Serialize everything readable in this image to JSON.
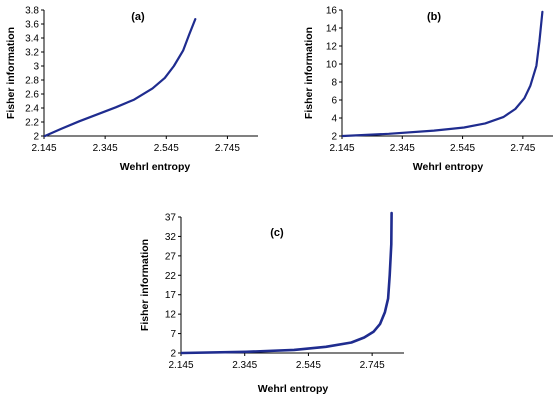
{
  "chart_data": [
    {
      "type": "line",
      "title": "(a)",
      "xlabel": "Wehrl entropy",
      "ylabel": "Fisher information",
      "xlim": [
        2.145,
        2.845
      ],
      "ylim": [
        2,
        3.8
      ],
      "xticks": [
        "2.145",
        "2.345",
        "2.545",
        "2.745"
      ],
      "yticks": [
        "2",
        "2.2",
        "2.4",
        "2.6",
        "2.8",
        "3",
        "3.2",
        "3.4",
        "3.6",
        "3.8"
      ],
      "color": "#1f2c8f",
      "grid": false,
      "series": [
        {
          "x": [
            2.148,
            2.2,
            2.26,
            2.32,
            2.38,
            2.44,
            2.5,
            2.54,
            2.57,
            2.6,
            2.62,
            2.64
          ],
          "y": [
            2.0,
            2.1,
            2.21,
            2.31,
            2.41,
            2.52,
            2.68,
            2.83,
            3.0,
            3.22,
            3.45,
            3.67
          ]
        }
      ]
    },
    {
      "type": "line",
      "title": "(b)",
      "xlabel": "Wehrl entropy",
      "ylabel": "Fisher information",
      "xlim": [
        2.145,
        2.845
      ],
      "ylim": [
        2,
        16
      ],
      "xticks": [
        "2.145",
        "2.345",
        "2.545",
        "2.745"
      ],
      "yticks": [
        "2",
        "4",
        "6",
        "8",
        "10",
        "12",
        "14",
        "16"
      ],
      "color": "#1f2c8f",
      "grid": false,
      "series": [
        {
          "x": [
            2.148,
            2.3,
            2.45,
            2.55,
            2.62,
            2.68,
            2.72,
            2.75,
            2.77,
            2.79,
            2.8,
            2.81
          ],
          "y": [
            2.0,
            2.25,
            2.6,
            2.95,
            3.4,
            4.1,
            5.0,
            6.2,
            7.6,
            9.8,
            12.5,
            15.8
          ]
        }
      ]
    },
    {
      "type": "line",
      "title": "(c)",
      "xlabel": "Wehrl entropy",
      "ylabel": "Fisher information",
      "xlim": [
        2.145,
        2.845
      ],
      "ylim": [
        2,
        37
      ],
      "xticks": [
        "2.145",
        "2.345",
        "2.545",
        "2.745"
      ],
      "yticks": [
        "2",
        "7",
        "12",
        "17",
        "22",
        "27",
        "32",
        "37"
      ],
      "color": "#1f2c8f",
      "grid": false,
      "series": [
        {
          "x": [
            2.148,
            2.35,
            2.5,
            2.6,
            2.68,
            2.72,
            2.75,
            2.77,
            2.785,
            2.795,
            2.8,
            2.805,
            2.806
          ],
          "y": [
            2.0,
            2.3,
            2.8,
            3.6,
            4.7,
            6.0,
            7.5,
            9.5,
            12.5,
            16.0,
            22.0,
            30.0,
            38.0
          ]
        }
      ]
    }
  ]
}
